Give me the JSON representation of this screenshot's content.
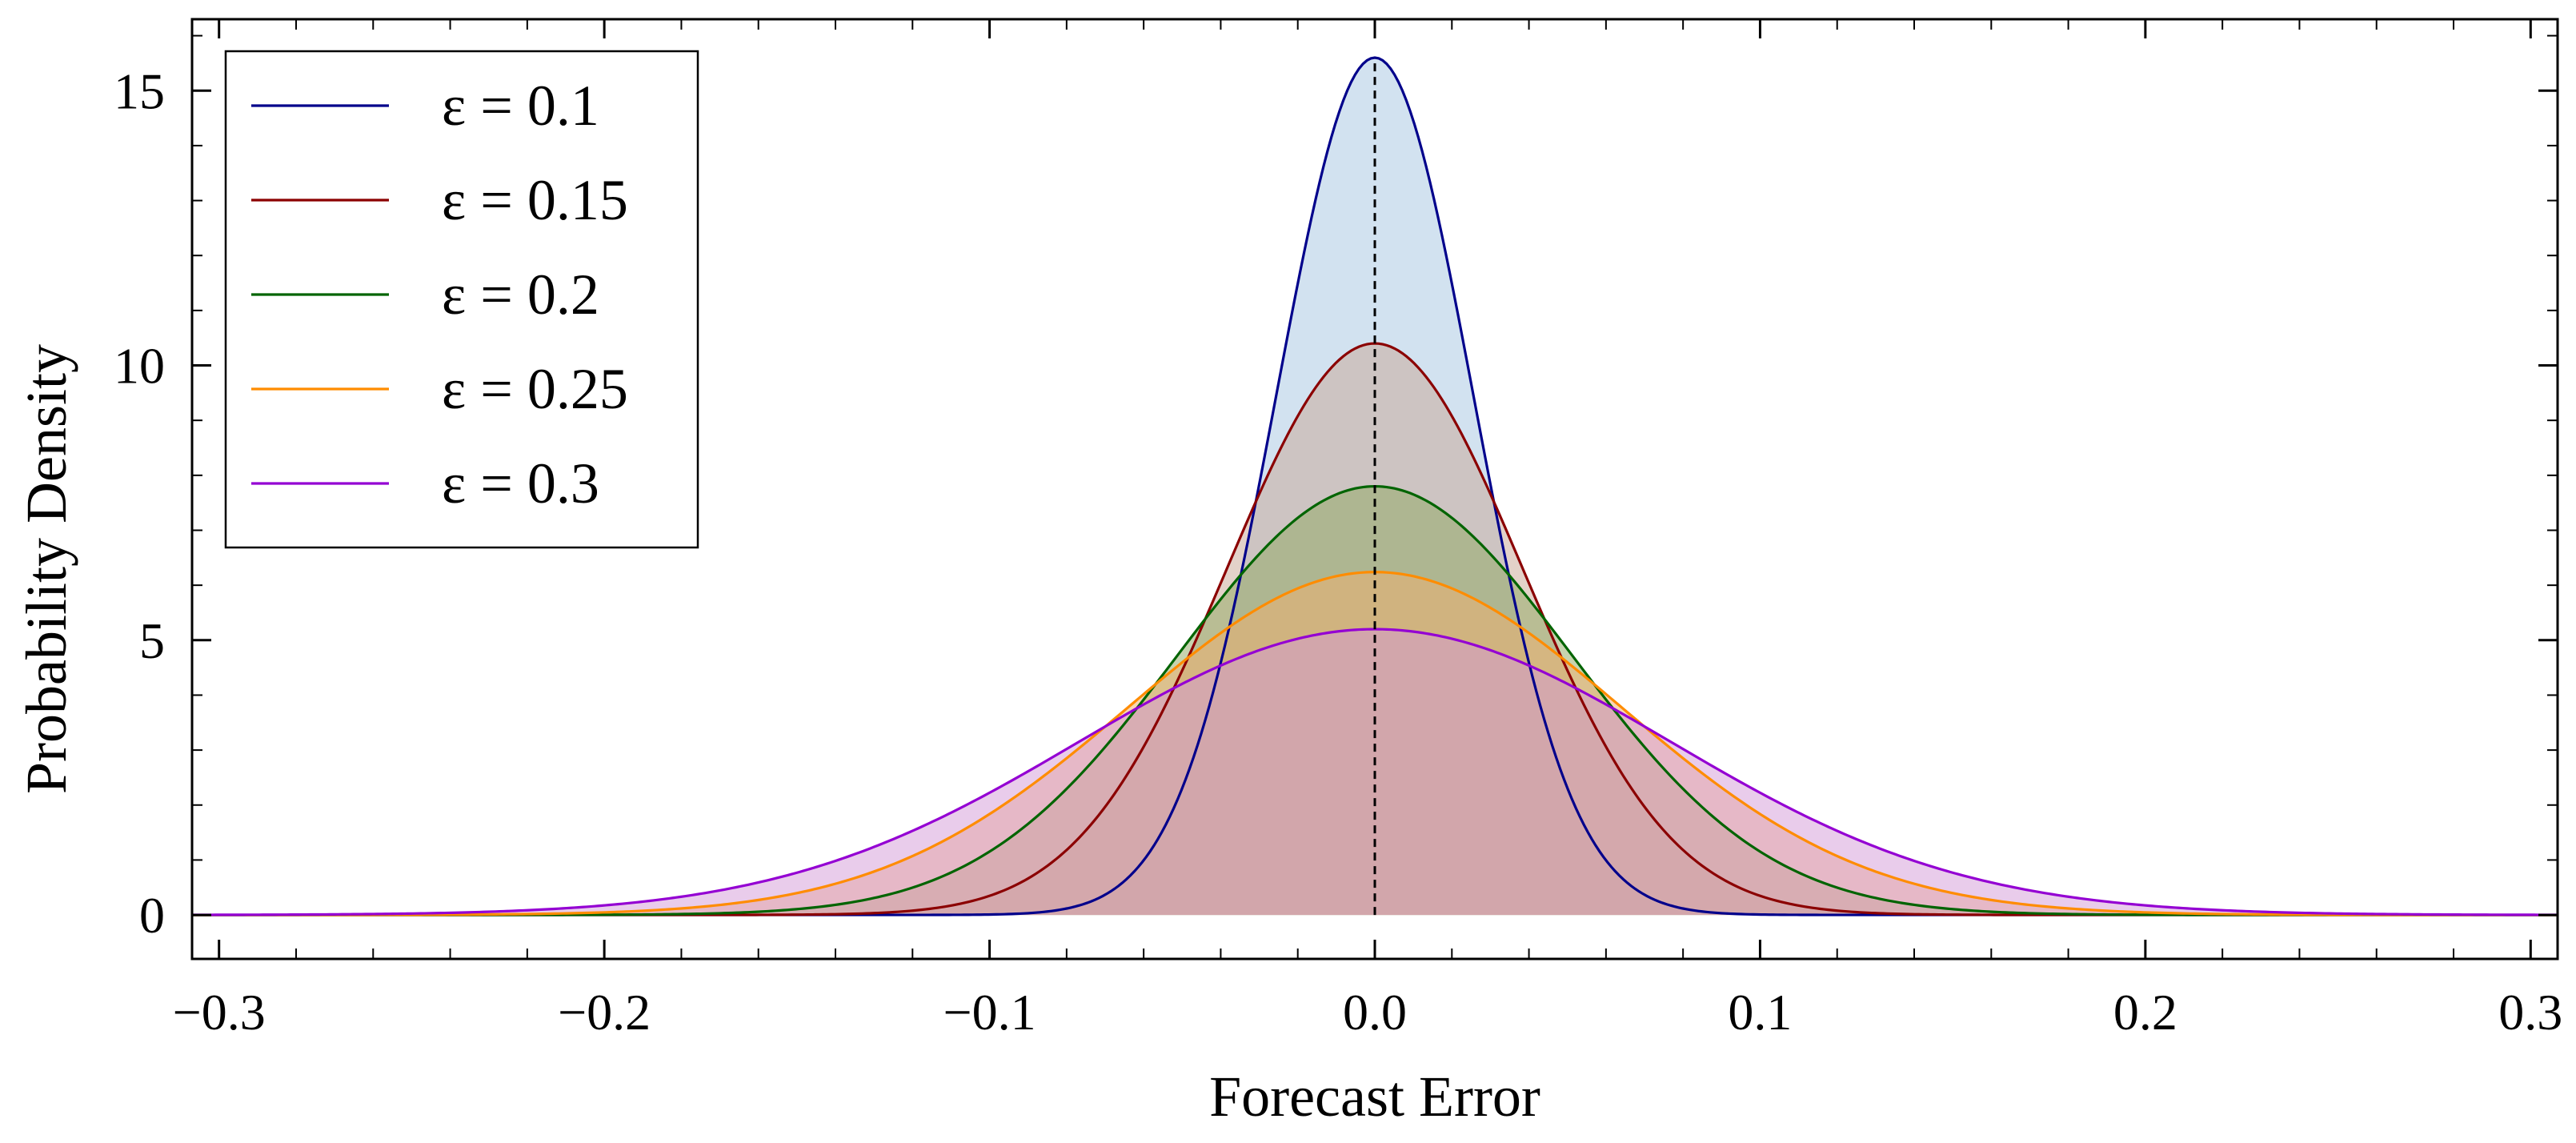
{
  "chart_data": {
    "type": "area",
    "xlabel": "Forecast Error",
    "ylabel": "Probability Density",
    "xlim": [
      -0.307,
      0.307
    ],
    "ylim": [
      -0.8,
      16.3
    ],
    "x_ticks": [
      -0.3,
      -0.2,
      -0.1,
      0.0,
      0.1,
      0.2,
      0.3
    ],
    "x_tick_labels": [
      "−0.3",
      "−0.2",
      "−0.1",
      "0.0",
      "0.1",
      "0.2",
      "0.3"
    ],
    "y_ticks": [
      0,
      5,
      10,
      15
    ],
    "y_tick_labels": [
      "0",
      "5",
      "10",
      "15"
    ],
    "grid": false,
    "legend_position": "top-left",
    "reference_line": {
      "x": 0.0,
      "style": "dashed",
      "color": "#000000"
    },
    "series": [
      {
        "name": "ε = 0.1",
        "peak": 15.6,
        "sigma": 0.02557,
        "color": "#00008b",
        "fill": "#a6c6e1"
      },
      {
        "name": "ε = 0.15",
        "peak": 10.4,
        "sigma": 0.03836,
        "color": "#8b0000",
        "fill": "#c8a693"
      },
      {
        "name": "ε = 0.2",
        "peak": 7.8,
        "sigma": 0.05114,
        "color": "#006400",
        "fill": "#8fa75f"
      },
      {
        "name": "ε = 0.25",
        "peak": 6.24,
        "sigma": 0.06393,
        "color": "#ff8c00",
        "fill": "#f2b06d"
      },
      {
        "name": "ε = 0.3",
        "peak": 5.2,
        "sigma": 0.07672,
        "color": "#9400d3",
        "fill": "#d39ad8"
      }
    ]
  }
}
